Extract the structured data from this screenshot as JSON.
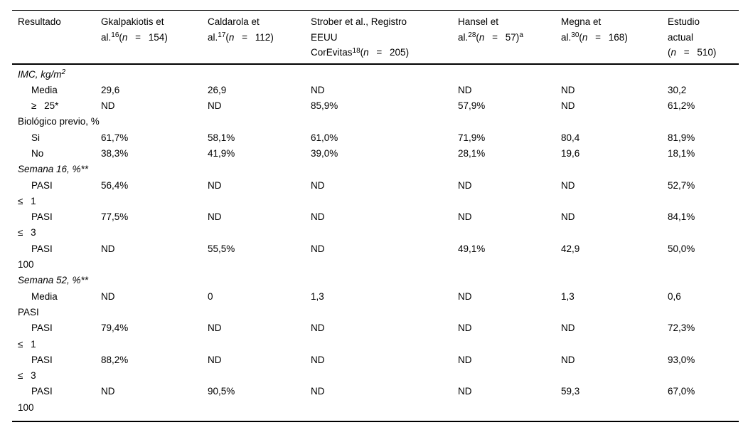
{
  "table": {
    "columns": [
      {
        "title": "Resultado"
      },
      {
        "line1": "Gkalpakiotis et",
        "nline": {
          "pre": "al.",
          "ref": "16",
          "open": "(",
          "nvar": "n",
          "rest": " = 154)"
        }
      },
      {
        "line1": "Caldarola et",
        "nline": {
          "pre": "al.",
          "ref": "17",
          "open": "(",
          "nvar": "n",
          "rest": " = 112)"
        }
      },
      {
        "line1": "Strober et al., Registro",
        "line2": "EEUU",
        "nline": {
          "pre": "CorEvitas",
          "ref": "18",
          "open": "(",
          "nvar": "n",
          "rest": " = 205)"
        }
      },
      {
        "line1": "Hansel et",
        "nline": {
          "pre": "al.",
          "ref": "28",
          "open": "(",
          "nvar": "n",
          "rest": " = 57)",
          "note": "a"
        }
      },
      {
        "line1": "Megna et",
        "nline": {
          "pre": "al.",
          "ref": "30",
          "open": "(",
          "nvar": "n",
          "rest": " = 168)"
        }
      },
      {
        "line1": "Estudio",
        "line2": "actual",
        "nline": {
          "open": "(",
          "nvar": "n",
          "rest": " = 510)"
        }
      }
    ],
    "rows": [
      {
        "kind": "section",
        "text": "IMC, kg/m",
        "sup": "2"
      },
      {
        "kind": "data",
        "label1": "Media",
        "values": [
          "29,6",
          "26,9",
          "ND",
          "ND",
          "ND",
          "30,2"
        ]
      },
      {
        "kind": "data",
        "label1": "≥ 25*",
        "values": [
          "ND",
          "ND",
          "85,9%",
          "57,9%",
          "ND",
          "61,2%"
        ]
      },
      {
        "kind": "section",
        "text": "Biológico previo, %"
      },
      {
        "kind": "data",
        "label1": "Si",
        "values": [
          "61,7%",
          "58,1%",
          "61,0%",
          "71,9%",
          "80,4",
          "81,9%"
        ]
      },
      {
        "kind": "data",
        "label1": "No",
        "values": [
          "38,3%",
          "41,9%",
          "39,0%",
          "28,1%",
          "19,6",
          "18,1%"
        ]
      },
      {
        "kind": "section",
        "text": "Semana 16, %**"
      },
      {
        "kind": "data",
        "label1": "PASI",
        "label2": "≤ 1",
        "values": [
          "56,4%",
          "ND",
          "ND",
          "ND",
          "ND",
          "52,7%"
        ]
      },
      {
        "kind": "data",
        "label1": "PASI",
        "label2": "≤ 3",
        "values": [
          "77,5%",
          "ND",
          "ND",
          "ND",
          "ND",
          "84,1%"
        ]
      },
      {
        "kind": "data",
        "label1": "PASI",
        "label2": "100",
        "values": [
          "ND",
          "55,5%",
          "ND",
          "49,1%",
          "42,9",
          "50,0%"
        ]
      },
      {
        "kind": "section",
        "text": "Semana 52, %**"
      },
      {
        "kind": "data",
        "label1": "Media",
        "label2": "PASI",
        "values": [
          "ND",
          "0",
          "1,3",
          "ND",
          "1,3",
          "0,6"
        ]
      },
      {
        "kind": "data",
        "label1": "PASI",
        "label2": "≤ 1",
        "values": [
          "79,4%",
          "ND",
          "ND",
          "ND",
          "ND",
          "72,3%"
        ]
      },
      {
        "kind": "data",
        "label1": "PASI",
        "label2": "≤ 3",
        "values": [
          "88,2%",
          "ND",
          "ND",
          "ND",
          "ND",
          "93,0%"
        ]
      },
      {
        "kind": "data",
        "label1": "PASI",
        "label2": "100",
        "values": [
          "ND",
          "90,5%",
          "ND",
          "ND",
          "59,3",
          "67,0%"
        ]
      }
    ]
  }
}
